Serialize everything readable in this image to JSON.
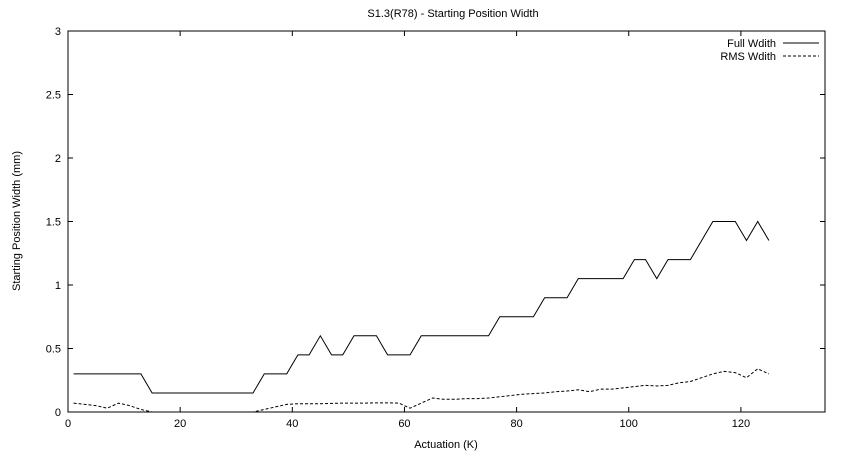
{
  "chart_data": {
    "type": "line",
    "title": "S1.3(R78) - Starting Position Width",
    "xlabel": "Actuation (K)",
    "ylabel": "Starting Position Width (mm)",
    "xlim": [
      0,
      135
    ],
    "ylim": [
      0,
      3
    ],
    "xticks": [
      0,
      20,
      40,
      60,
      80,
      100,
      120
    ],
    "xtick_labels": [
      "0",
      "20",
      "40",
      "60",
      "80",
      "100",
      "120"
    ],
    "yticks": [
      0,
      0.5,
      1,
      1.5,
      2,
      2.5,
      3
    ],
    "ytick_labels": [
      "0",
      "0.5",
      "1",
      "1.5",
      "2",
      "2.5",
      "3"
    ],
    "grid": false,
    "legend_position": "top-right",
    "series": [
      {
        "name": "Full Wdith",
        "style": "solid",
        "color": "#000000",
        "x": [
          1,
          13,
          15,
          33,
          35,
          39,
          41,
          43,
          45,
          47,
          49,
          51,
          55,
          57,
          61,
          63,
          75,
          77,
          83,
          85,
          89,
          91,
          99,
          101,
          103,
          105,
          107,
          111,
          115,
          119,
          121,
          123,
          125
        ],
        "y": [
          0.3,
          0.3,
          0.15,
          0.15,
          0.3,
          0.3,
          0.45,
          0.45,
          0.6,
          0.45,
          0.45,
          0.6,
          0.6,
          0.45,
          0.45,
          0.6,
          0.6,
          0.75,
          0.75,
          0.9,
          0.9,
          1.05,
          1.05,
          1.2,
          1.2,
          1.05,
          1.2,
          1.2,
          1.5,
          1.5,
          1.35,
          1.5,
          1.35
        ]
      },
      {
        "name": "RMS Wdith",
        "style": "dashed",
        "color": "#000000",
        "x": [
          1,
          3,
          5,
          7,
          9,
          11,
          13,
          15,
          33,
          35,
          37,
          39,
          41,
          43,
          45,
          47,
          49,
          51,
          53,
          55,
          57,
          59,
          61,
          63,
          65,
          67,
          69,
          71,
          73,
          75,
          77,
          79,
          81,
          83,
          85,
          87,
          89,
          91,
          93,
          95,
          97,
          99,
          101,
          103,
          105,
          107,
          109,
          111,
          113,
          115,
          117,
          119,
          121,
          123,
          125
        ],
        "y": [
          0.07,
          0.06,
          0.05,
          0.03,
          0.07,
          0.05,
          0.02,
          0.0,
          0.0,
          0.02,
          0.04,
          0.06,
          0.065,
          0.065,
          0.065,
          0.068,
          0.07,
          0.07,
          0.07,
          0.072,
          0.072,
          0.07,
          0.03,
          0.07,
          0.11,
          0.1,
          0.1,
          0.105,
          0.105,
          0.11,
          0.12,
          0.13,
          0.14,
          0.145,
          0.15,
          0.16,
          0.165,
          0.175,
          0.16,
          0.18,
          0.18,
          0.19,
          0.2,
          0.21,
          0.205,
          0.21,
          0.23,
          0.24,
          0.27,
          0.3,
          0.32,
          0.31,
          0.27,
          0.34,
          0.3
        ]
      }
    ]
  }
}
